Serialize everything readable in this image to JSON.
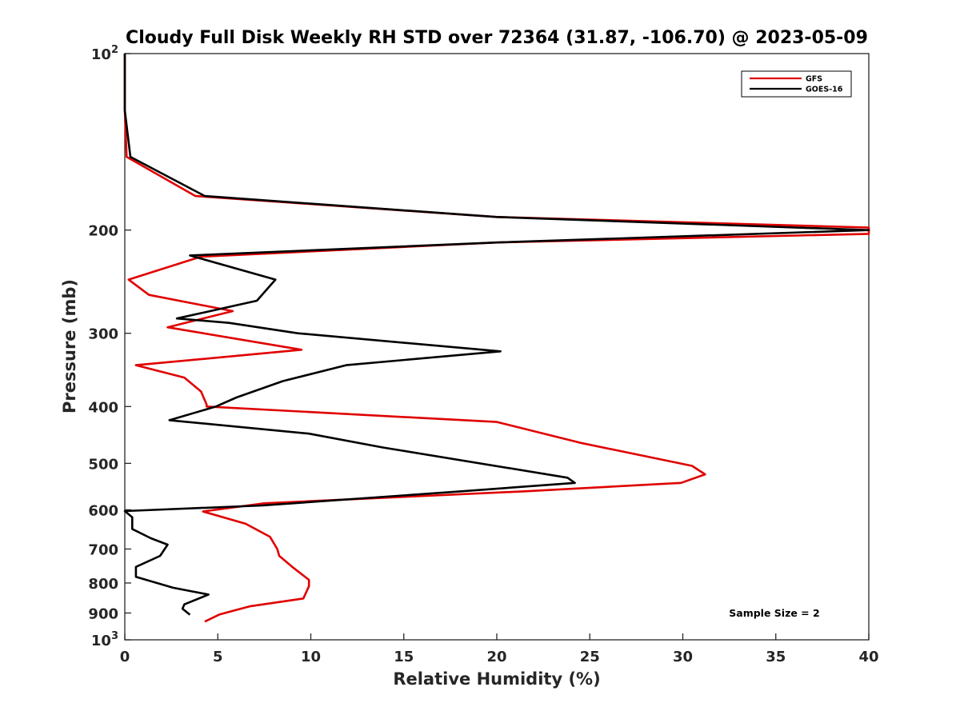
{
  "chart_data": {
    "type": "line",
    "title": "Cloudy Full Disk Weekly RH STD over 72364 (31.87, -106.70) @ 2023-05-09",
    "xlabel": "Relative Humidity (%)",
    "ylabel": "Pressure (mb)",
    "xlim": [
      0,
      40
    ],
    "ylim": [
      100,
      1000
    ],
    "yscale": "log",
    "y_reversed": true,
    "grid": false,
    "legend_position": "top-right",
    "x_ticks": [
      0,
      5,
      10,
      15,
      20,
      25,
      30,
      35,
      40
    ],
    "x_tick_labels": [
      "0",
      "5",
      "10",
      "15",
      "20",
      "25",
      "30",
      "35",
      "40"
    ],
    "y_ticks": [
      100,
      200,
      300,
      400,
      500,
      600,
      700,
      800,
      900,
      1000
    ],
    "y_tick_labels": [
      "10²",
      "200",
      "300",
      "400",
      "500",
      "600",
      "700",
      "800",
      "900",
      "10³"
    ],
    "annotation": "Sample Size = 2",
    "series": [
      {
        "name": "GFS",
        "color": "#e00000",
        "points": [
          [
            0,
            100
          ],
          [
            0,
            125
          ],
          [
            0.1,
            150
          ],
          [
            3.8,
            175
          ],
          [
            20,
            190
          ],
          [
            40,
            198
          ],
          [
            40,
            203
          ],
          [
            20,
            210
          ],
          [
            4.1,
            222
          ],
          [
            0.2,
            243
          ],
          [
            1.3,
            258
          ],
          [
            5.8,
            275
          ],
          [
            2.3,
            293
          ],
          [
            9.5,
            320
          ],
          [
            0.6,
            340
          ],
          [
            3.2,
            357
          ],
          [
            4.1,
            377
          ],
          [
            4.4,
            397
          ],
          [
            4.4,
            400
          ],
          [
            20,
            425
          ],
          [
            24.6,
            462
          ],
          [
            30.5,
            505
          ],
          [
            31.2,
            522
          ],
          [
            29.9,
            540
          ],
          [
            21.5,
            558
          ],
          [
            7.5,
            585
          ],
          [
            4.2,
            604
          ],
          [
            6.5,
            634
          ],
          [
            7.8,
            667
          ],
          [
            8.2,
            700
          ],
          [
            8.3,
            719
          ],
          [
            9,
            751
          ],
          [
            9.9,
            790
          ],
          [
            9.9,
            810
          ],
          [
            9.6,
            850
          ],
          [
            6.7,
            877
          ],
          [
            5.1,
            905
          ],
          [
            4.3,
            931
          ]
        ]
      },
      {
        "name": "GOES-16",
        "color": "#000000",
        "points": [
          [
            0,
            100
          ],
          [
            0,
            125
          ],
          [
            0.3,
            150
          ],
          [
            4.3,
            175
          ],
          [
            20,
            190
          ],
          [
            40,
            200
          ],
          [
            20,
            210
          ],
          [
            3.5,
            221
          ],
          [
            8.1,
            243
          ],
          [
            7.1,
            264
          ],
          [
            2.8,
            283
          ],
          [
            5.6,
            288
          ],
          [
            9.3,
            300
          ],
          [
            20.2,
            322
          ],
          [
            11.9,
            340
          ],
          [
            8.5,
            362
          ],
          [
            6,
            386
          ],
          [
            4.9,
            400
          ],
          [
            2.4,
            422
          ],
          [
            9.9,
            445
          ],
          [
            13.9,
            470
          ],
          [
            23.8,
            529
          ],
          [
            24.2,
            540
          ],
          [
            18.1,
            558
          ],
          [
            7.4,
            590
          ],
          [
            0,
            603
          ],
          [
            0.4,
            618
          ],
          [
            0.4,
            647
          ],
          [
            1.4,
            671
          ],
          [
            2.3,
            688
          ],
          [
            1.9,
            719
          ],
          [
            0.6,
            751
          ],
          [
            0.6,
            781
          ],
          [
            2.6,
            815
          ],
          [
            4.5,
            837
          ],
          [
            3.2,
            870
          ],
          [
            3.1,
            885
          ],
          [
            3.5,
            906
          ]
        ]
      }
    ]
  }
}
